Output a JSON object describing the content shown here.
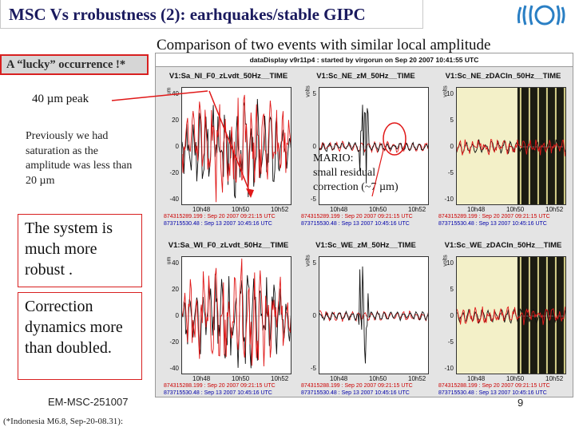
{
  "slide": {
    "title": "MSC Vs rrobustness (2): earhquakes/stable GIPC",
    "subtitle": "Comparison of two events with similar local amplitude",
    "lucky": "A “lucky” occurrence !*",
    "peak": "40 µm peak",
    "previous": "Previously we had saturation as the amplitude was less than 20 µm",
    "robust": "The system is much more robust .",
    "dynamics": "Correction dynamics more than doubled.",
    "footer": "EM-MSC-251007",
    "footnote": "(*Indonesia M6.8, Sep-20-08.31):",
    "page_number": "9",
    "mario": [
      "MARIO:",
      "small residual",
      "correction (~7 µm)"
    ]
  },
  "display": {
    "title": "dataDisplay v9r11p4 : started by virgorun on Sep 20 2007 10:41:55 UTC",
    "panels": [
      {
        "title": "V1:Sa_NI_F0_zLvdt_50Hz__TIME",
        "unit": "um",
        "yticks": [
          "40",
          "20",
          "0",
          "-20",
          "-40"
        ],
        "xticks": [
          "10h48",
          "10h50",
          "10h52"
        ],
        "cap_red": "874315289.199 : Sep 20 2007 09:21:15 UTC",
        "cap_black": "873715530.48 : Sep 13 2007 10:45:16 UTC"
      },
      {
        "title": "V1:Sc_NE_zM_50Hz__TIME",
        "unit": "volts",
        "yticks": [
          "5",
          "0",
          "-5"
        ],
        "xticks": [
          "10h48",
          "10h50",
          "10h52"
        ],
        "cap_red": "874315289.199 : Sep 20 2007 09:21:15 UTC",
        "cap_black": "873715530.48 : Sep 13 2007 10:45:16 UTC"
      },
      {
        "title": "V1:Sc_NE_zDACIn_50Hz__TIME",
        "unit": "volts",
        "yticks": [
          "10",
          "5",
          "0",
          "-5",
          "-10"
        ],
        "xticks": [
          "10h48",
          "10h50",
          "10h52"
        ],
        "cap_red": "874315289.199 : Sep 20 2007 09:21:15 UTC",
        "cap_black": "873715530.48 : Sep 13 2007 10:45:16 UTC"
      },
      {
        "title": "V1:Sa_WI_F0_zLvdt_50Hz__TIME",
        "unit": "um",
        "yticks": [
          "40",
          "20",
          "0",
          "-20",
          "-40"
        ],
        "xticks": [
          "10h48",
          "10h50",
          "10h52"
        ],
        "cap_red": "874315288.199 : Sep 20 2007 09:21:15 UTC",
        "cap_black": "873715530.48 : Sep 13 2007 10:45:16 UTC"
      },
      {
        "title": "V1:Sc_WE_zM_50Hz__TIME",
        "unit": "volts",
        "yticks": [
          "5",
          "0",
          "-5"
        ],
        "xticks": [
          "10h48",
          "10h50",
          "10h52"
        ],
        "cap_red": "874315288.199 : Sep 20 2007 09:21:15 UTC",
        "cap_black": "873715530.48 : Sep 13 2007 10:45:16 UTC"
      },
      {
        "title": "V1:Sc_WE_zDACIn_50Hz__TIME",
        "unit": "volts",
        "yticks": [
          "10",
          "5",
          "0",
          "-5",
          "-10"
        ],
        "xticks": [
          "10h48",
          "10h50",
          "10h52"
        ],
        "cap_red": "874315288.199 : Sep 20 2007 09:21:15 UTC",
        "cap_black": "873715530.48 : Sep 13 2007 10:45:16 UTC"
      }
    ]
  },
  "colors": {
    "title": "#1a1a5e",
    "box_border": "#d82020",
    "trace_red": "#e01818",
    "trace_black": "#111111",
    "caption_red": "#cc0000",
    "caption_blue": "#0000aa"
  }
}
